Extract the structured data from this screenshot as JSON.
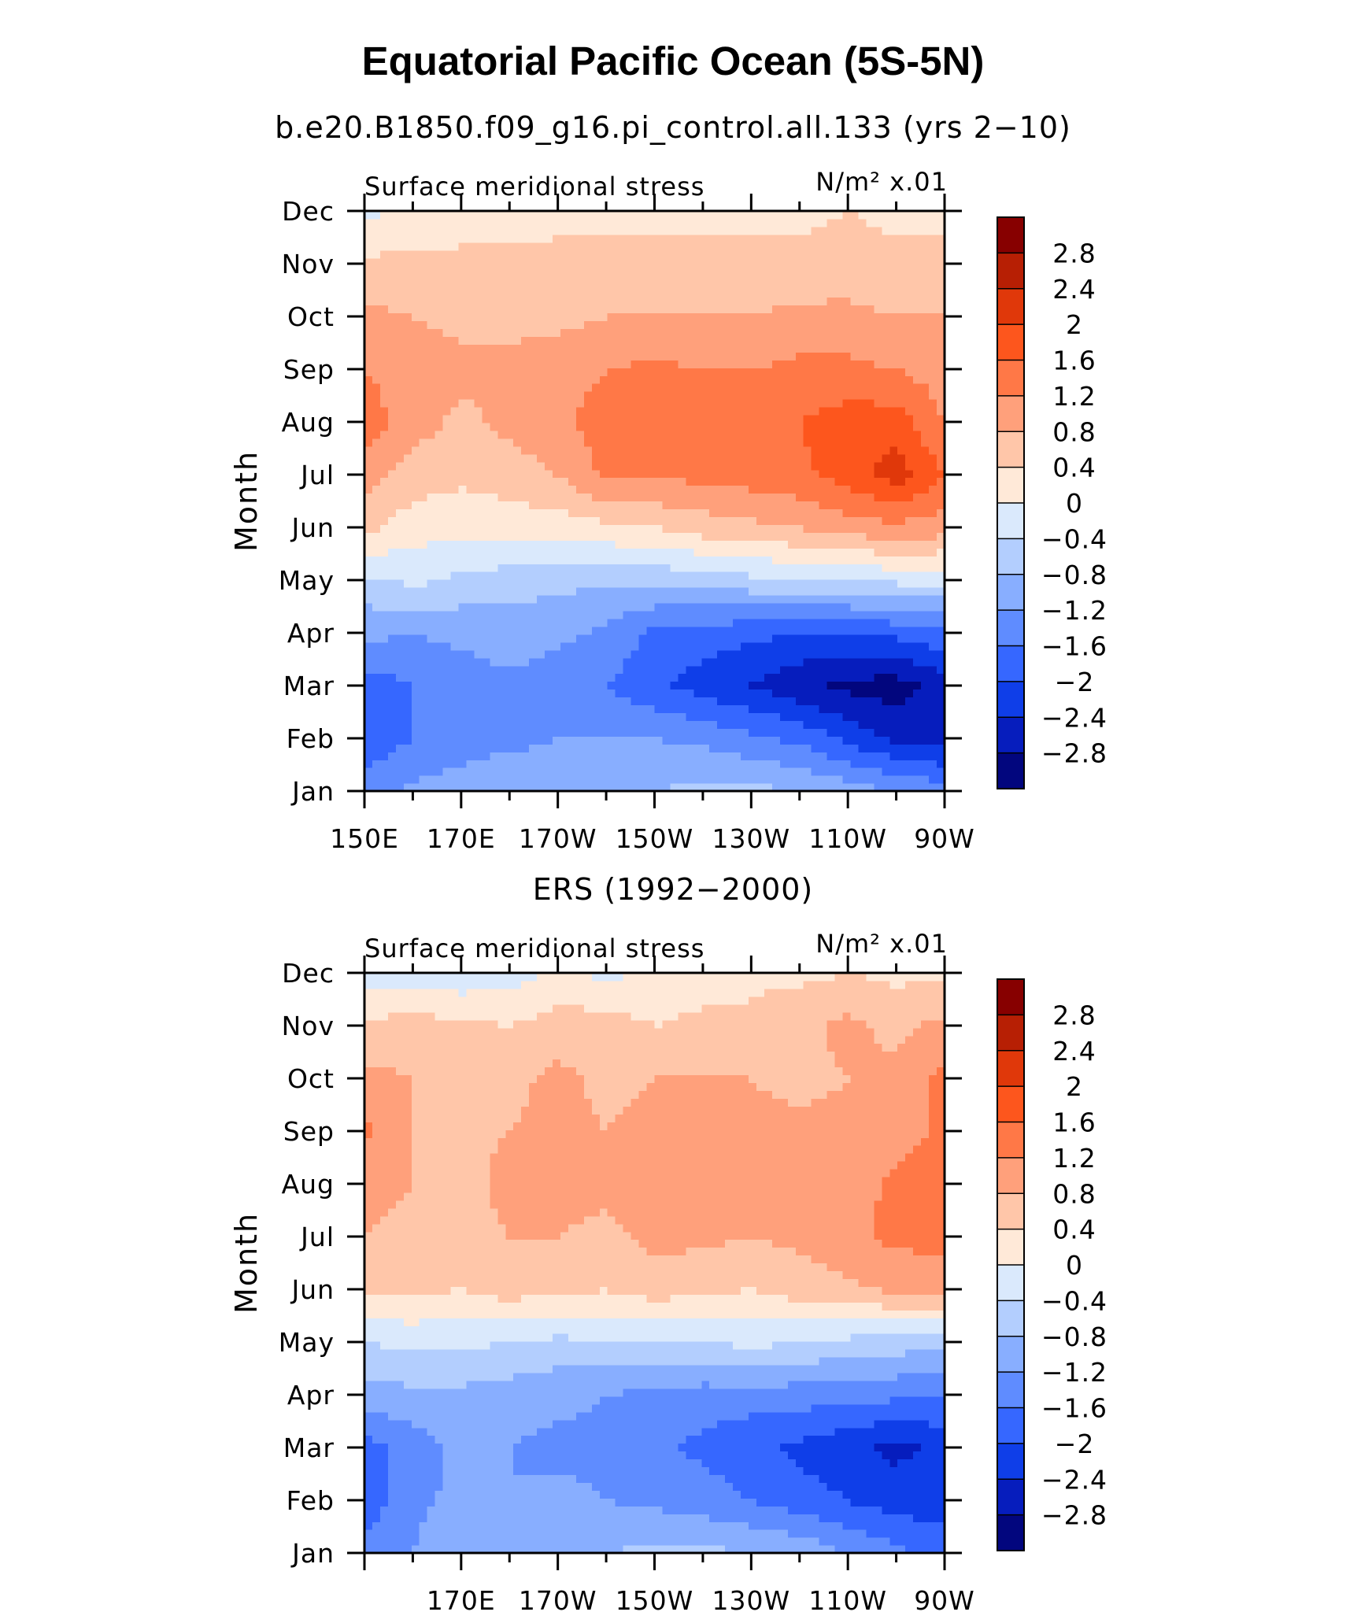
{
  "title": "Equatorial Pacific Ocean (5S-5N)",
  "panels": [
    {
      "title": "b.e20.B1850.f09_g16.pi_control.all.133 (yrs 2−10)",
      "left_label": "Surface meridional stress",
      "right_label": "N/m² x.01",
      "ylabel": "Month",
      "xticks": [
        "150E",
        "170E",
        "170W",
        "150W",
        "130W",
        "110W",
        "90W"
      ]
    },
    {
      "title": "ERS (1992−2000)",
      "left_label": "Surface meridional stress",
      "right_label": "N/m² x.01",
      "ylabel": "Month",
      "xticks": [
        "",
        "170E",
        "170W",
        "150W",
        "130W",
        "110W",
        "90W"
      ]
    }
  ],
  "months": [
    "Jan",
    "Feb",
    "Mar",
    "Apr",
    "May",
    "Jun",
    "Jul",
    "Aug",
    "Sep",
    "Oct",
    "Nov",
    "Dec"
  ],
  "colorbar": {
    "labels": [
      "2.8",
      "2.4",
      "2",
      "1.6",
      "1.2",
      "0.8",
      "0.4",
      "0",
      "−0.4",
      "−0.8",
      "−1.2",
      "−1.6",
      "−2",
      "−2.4",
      "−2.8"
    ],
    "colors": [
      "#870000",
      "#b71f04",
      "#e0380a",
      "#fd561d",
      "#ff7847",
      "#ffa07b",
      "#ffc6a9",
      "#ffe9d8",
      "#dae9fc",
      "#b3cefe",
      "#88aeff",
      "#5f8cff",
      "#3667ff",
      "#0f3ee8",
      "#061dbd",
      "#02067e"
    ]
  },
  "chart_data": [
    {
      "type": "heatmap",
      "title": "b.e20.B1850.f09_g16.pi_control.all.133 (yrs 2−10)",
      "variable": "Surface meridional stress",
      "units": "N/m² x.01",
      "ylabel": "Month",
      "x": [
        150,
        160,
        170,
        180,
        190,
        200,
        210,
        220,
        230,
        240,
        250,
        260,
        270
      ],
      "y": [
        "Jan",
        "Feb",
        "Mar",
        "Apr",
        "May",
        "Jun",
        "Jul",
        "Aug",
        "Sep",
        "Oct",
        "Nov",
        "Dec"
      ],
      "levels": [
        -2.8,
        -2.4,
        -2.0,
        -1.6,
        -1.2,
        -0.8,
        -0.4,
        0,
        0.4,
        0.8,
        1.2,
        1.6,
        2.0,
        2.4,
        2.8
      ],
      "z": [
        [
          -1.4,
          -1.1,
          -1.0,
          -0.9,
          -0.9,
          -0.8,
          -0.8,
          -0.7,
          -0.7,
          -0.8,
          -1.0,
          -1.2,
          -1.4
        ],
        [
          -1.9,
          -1.6,
          -1.4,
          -1.3,
          -1.2,
          -1.2,
          -1.2,
          -1.3,
          -1.5,
          -1.7,
          -2.1,
          -2.5,
          -2.6
        ],
        [
          -1.8,
          -1.6,
          -1.4,
          -1.3,
          -1.4,
          -1.6,
          -1.9,
          -2.2,
          -2.4,
          -2.7,
          -2.9,
          -3.0,
          -2.6
        ],
        [
          -1.1,
          -1.2,
          -1.1,
          -1.0,
          -1.1,
          -1.3,
          -1.7,
          -1.8,
          -1.9,
          -2.0,
          -2.0,
          -1.9,
          -1.7
        ],
        [
          -0.5,
          -0.3,
          -0.5,
          -0.6,
          -0.7,
          -0.7,
          -0.7,
          -0.6,
          -0.5,
          -0.4,
          -0.4,
          -0.3,
          -0.3
        ],
        [
          0.5,
          0.2,
          0.1,
          0.2,
          0.2,
          0.3,
          0.4,
          0.6,
          0.7,
          0.8,
          1.0,
          1.1,
          1.0
        ],
        [
          1.0,
          0.6,
          0.5,
          0.6,
          0.8,
          1.3,
          1.3,
          1.3,
          1.4,
          1.5,
          1.8,
          2.2,
          1.6
        ],
        [
          1.4,
          1.0,
          0.7,
          0.9,
          1.1,
          1.4,
          1.4,
          1.4,
          1.5,
          1.6,
          1.8,
          1.8,
          1.2
        ],
        [
          1.2,
          1.0,
          0.9,
          0.9,
          1.0,
          1.2,
          1.3,
          1.2,
          1.2,
          1.3,
          1.3,
          1.2,
          1.0
        ],
        [
          0.9,
          0.8,
          0.7,
          0.7,
          0.7,
          0.8,
          0.8,
          0.8,
          0.8,
          0.9,
          0.9,
          0.8,
          0.8
        ],
        [
          0.5,
          0.5,
          0.5,
          0.5,
          0.5,
          0.5,
          0.5,
          0.5,
          0.5,
          0.5,
          0.6,
          0.5,
          0.5
        ],
        [
          -0.1,
          0.1,
          0.2,
          0.2,
          0.3,
          0.3,
          0.3,
          0.3,
          0.3,
          0.3,
          0.4,
          0.3,
          0.3
        ]
      ]
    },
    {
      "type": "heatmap",
      "title": "ERS (1992−2000)",
      "variable": "Surface meridional stress",
      "units": "N/m² x.01",
      "ylabel": "Month",
      "x": [
        150,
        160,
        170,
        180,
        190,
        200,
        210,
        220,
        230,
        240,
        250,
        260,
        270
      ],
      "y": [
        "Jan",
        "Feb",
        "Mar",
        "Apr",
        "May",
        "Jun",
        "Jul",
        "Aug",
        "Sep",
        "Oct",
        "Nov",
        "Dec"
      ],
      "levels": [
        -2.8,
        -2.4,
        -2.0,
        -1.6,
        -1.2,
        -0.8,
        -0.4,
        0,
        0.4,
        0.8,
        1.2,
        1.6,
        2.0,
        2.4,
        2.8
      ],
      "z": [
        [
          -1.4,
          -1.2,
          -0.9,
          -0.9,
          -0.8,
          -0.8,
          -0.7,
          -0.7,
          -0.8,
          -0.9,
          -1.2,
          -1.5,
          -1.8
        ],
        [
          -1.9,
          -1.3,
          -1.1,
          -1.2,
          -1.1,
          -1.2,
          -1.3,
          -1.4,
          -1.6,
          -1.8,
          -2.0,
          -2.2,
          -2.2
        ],
        [
          -1.8,
          -1.4,
          -1.1,
          -1.2,
          -1.3,
          -1.3,
          -1.5,
          -1.7,
          -1.9,
          -2.1,
          -2.3,
          -2.5,
          -2.3
        ],
        [
          -1.0,
          -0.9,
          -0.9,
          -1.0,
          -1.1,
          -1.2,
          -1.3,
          -1.4,
          -1.4,
          -1.4,
          -1.5,
          -1.5,
          -1.6
        ],
        [
          -0.4,
          -0.3,
          -0.3,
          -0.4,
          -0.5,
          -0.4,
          -0.4,
          -0.4,
          -0.3,
          -0.4,
          -0.5,
          -0.6,
          -0.7
        ],
        [
          0.5,
          0.5,
          0.4,
          0.6,
          0.5,
          0.4,
          0.6,
          0.5,
          0.4,
          0.6,
          0.7,
          0.9,
          1.0
        ],
        [
          0.8,
          0.7,
          0.7,
          0.8,
          0.8,
          0.7,
          0.9,
          0.9,
          0.8,
          0.9,
          1.1,
          1.3,
          1.3
        ],
        [
          0.9,
          0.8,
          0.7,
          0.9,
          0.9,
          0.9,
          0.9,
          0.9,
          0.9,
          0.9,
          1.0,
          1.3,
          1.4
        ],
        [
          1.3,
          0.8,
          0.7,
          0.8,
          0.9,
          0.8,
          0.9,
          0.9,
          0.9,
          0.9,
          0.9,
          1.0,
          1.3
        ],
        [
          0.9,
          0.8,
          0.6,
          0.7,
          0.9,
          0.7,
          0.8,
          0.8,
          0.8,
          0.7,
          0.8,
          0.9,
          1.3
        ],
        [
          0.5,
          0.6,
          0.5,
          0.4,
          0.6,
          0.6,
          0.4,
          0.5,
          0.5,
          0.7,
          0.9,
          0.7,
          0.9
        ],
        [
          -0.2,
          -0.3,
          -0.3,
          -0.2,
          0.1,
          -0.1,
          0.1,
          0.2,
          0.3,
          0.3,
          0.4,
          0.3,
          0.3
        ]
      ]
    }
  ]
}
